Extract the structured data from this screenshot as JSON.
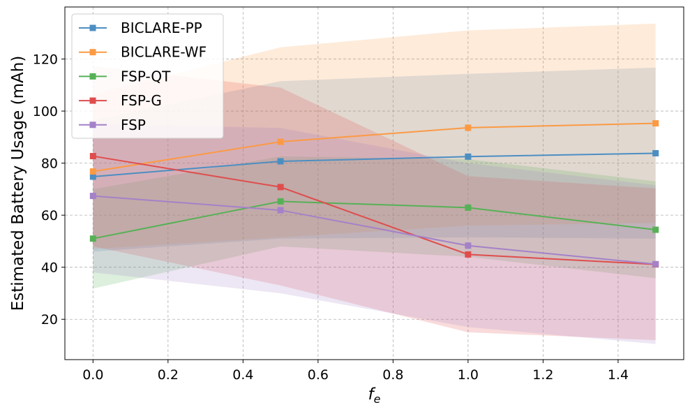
{
  "chart_data": {
    "type": "line",
    "xlabel": "f",
    "xlabel_sub": "e",
    "ylabel": "Estimated Battery Usage (mAh)",
    "xlim": [
      -0.075,
      1.575
    ],
    "ylim": [
      4.5,
      140
    ],
    "xticks": [
      0.0,
      0.2,
      0.4,
      0.6,
      0.8,
      1.0,
      1.2,
      1.4
    ],
    "xtick_labels": [
      "0.0",
      "0.2",
      "0.4",
      "0.6",
      "0.8",
      "1.0",
      "1.2",
      "1.4"
    ],
    "yticks": [
      20,
      40,
      60,
      80,
      100,
      120
    ],
    "ytick_labels": [
      "20",
      "40",
      "60",
      "80",
      "100",
      "120"
    ],
    "grid": true,
    "legend_position": "top-left",
    "x": [
      0.0,
      0.5,
      1.0,
      1.5
    ],
    "series": [
      {
        "name": "BICLARE-PP",
        "color": "#4c8ec2",
        "values": [
          74.8,
          80.7,
          82.5,
          83.8
        ],
        "band_upper": [
          96.5,
          111.5,
          114.3,
          116.7
        ],
        "band_lower": [
          46.0,
          51.0,
          51.5,
          51.0
        ]
      },
      {
        "name": "BICLARE-WF",
        "color": "#fb9a44",
        "values": [
          76.8,
          88.2,
          93.6,
          95.3
        ],
        "band_upper": [
          106.5,
          124.5,
          131.0,
          133.6
        ],
        "band_lower": [
          47.0,
          51.5,
          56.0,
          57.0
        ]
      },
      {
        "name": "FSP-QT",
        "color": "#56b156",
        "values": [
          51.0,
          65.3,
          62.9,
          54.4
        ],
        "band_upper": [
          70.0,
          82.6,
          81.5,
          73.0
        ],
        "band_lower": [
          31.8,
          48.0,
          44.0,
          35.8
        ]
      },
      {
        "name": "FSP-G",
        "color": "#df4d4d",
        "values": [
          82.7,
          70.8,
          44.9,
          41.1
        ],
        "band_upper": [
          117.3,
          109.0,
          75.0,
          70.3
        ],
        "band_lower": [
          48.0,
          33.0,
          15.0,
          12.0
        ]
      },
      {
        "name": "FSP",
        "color": "#a481c8",
        "values": [
          67.4,
          61.9,
          48.3,
          41.2
        ],
        "band_upper": [
          95.0,
          93.5,
          80.0,
          71.5
        ],
        "band_lower": [
          38.0,
          30.0,
          17.0,
          10.5
        ]
      }
    ]
  }
}
